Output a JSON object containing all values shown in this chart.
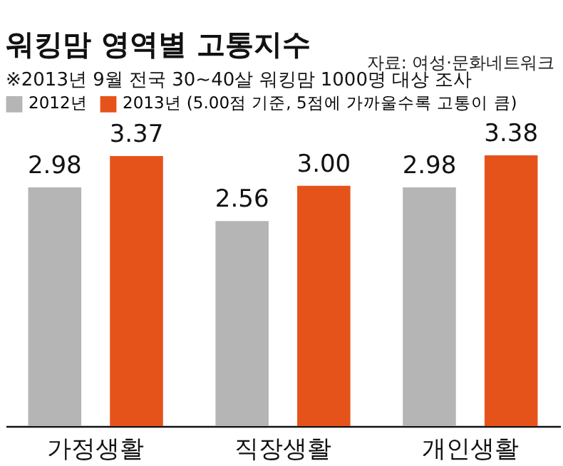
{
  "chart_data": {
    "type": "bar",
    "title": "워킹맘 영역별 고통지수",
    "subtitle": "※2013년 9월 전국 30~40살 워킹맘 1000명 대상 조사",
    "annotations": [
      "자료: 여성·문화네트워크"
    ],
    "categories": [
      "가정생활",
      "직장생활",
      "개인생활"
    ],
    "series": [
      {
        "name": "2012년",
        "color": "#b5b5b5",
        "values": [
          2.98,
          2.56,
          2.98
        ],
        "value_labels": [
          "2.98",
          "2.56",
          "2.98"
        ]
      },
      {
        "name": "2013년 (5.00점 기준, 5점에 가까울수록 고통이 큼)",
        "color": "#e5531a",
        "values": [
          3.37,
          3.0,
          3.38
        ],
        "value_labels": [
          "3.37",
          "3.00",
          "3.38"
        ]
      }
    ],
    "legend": "top left"
  }
}
